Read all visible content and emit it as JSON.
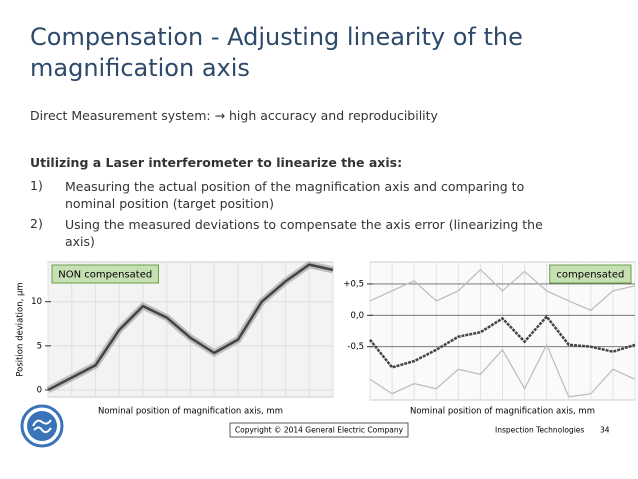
{
  "slide": {
    "title": "Compensation - Adjusting linearity of the magnification axis",
    "intro": "Direct Measurement system: → high accuracy and reproducibility",
    "heading": "Utilizing a Laser interferometer to linearize the axis:",
    "items": [
      {
        "num": "1)",
        "text": "Measuring the actual position of the magnification axis and comparing to nominal position (target position)"
      },
      {
        "num": "2)",
        "text": "Using the measured deviations to compensate the axis error (linearizing the axis)"
      }
    ],
    "copyright": "Copyright © 2014 General Electric Company",
    "division": "Inspection Technologies",
    "page": "34"
  },
  "chart_data": [
    {
      "type": "line",
      "annotation": "NON compensated",
      "annotation_corner": "top-left",
      "ylabel": "Position deviation, µm",
      "xlabel": "Nominal position of magnification axis, mm",
      "x": [
        0,
        50,
        100,
        150,
        200,
        250,
        300,
        350,
        400,
        450,
        500,
        550,
        600
      ],
      "xlim": [
        0,
        600
      ],
      "ylim": [
        -0.8,
        14.5
      ],
      "yticks": [
        0,
        5,
        10
      ],
      "grid": true,
      "series": [
        {
          "color": "#444444",
          "values": [
            0,
            1.4,
            2.8,
            6.8,
            9.5,
            8.2,
            5.9,
            4.2,
            5.7,
            10,
            12.3,
            14.2,
            13.6
          ]
        }
      ]
    },
    {
      "type": "line",
      "annotation": "compensated",
      "annotation_corner": "top-right",
      "xlabel": "Nominal position of magnification axis, mm",
      "x": [
        0,
        50,
        100,
        150,
        200,
        250,
        300,
        350,
        400,
        450,
        500,
        550,
        600
      ],
      "xlim": [
        0,
        600
      ],
      "ylim": [
        -1.35,
        0.85
      ],
      "yticks": [
        {
          "value": 0.5,
          "label": "+0,5"
        },
        {
          "value": 0,
          "label": "0,0"
        },
        {
          "value": -0.5,
          "label": "-0,5"
        }
      ],
      "grid": true,
      "series": [
        {
          "color": "#bbbbbb",
          "values": [
            0.23,
            0.39,
            0.55,
            0.23,
            0.39,
            0.73,
            0.39,
            0.7,
            0.39,
            0.23,
            0.08,
            0.39,
            0.47
          ]
        },
        {
          "color": "#bbbbbb",
          "values": [
            -1.02,
            -1.25,
            -1.09,
            -1.17,
            -0.86,
            -0.94,
            -0.55,
            -1.17,
            -0.47,
            -1.3,
            -1.25,
            -0.86,
            -1.02
          ]
        },
        {
          "color": "#444444",
          "values": [
            -0.39,
            -0.83,
            -0.73,
            -0.55,
            -0.34,
            -0.27,
            -0.05,
            -0.42,
            -0.02,
            -0.47,
            -0.5,
            -0.58,
            -0.47
          ]
        }
      ]
    }
  ]
}
